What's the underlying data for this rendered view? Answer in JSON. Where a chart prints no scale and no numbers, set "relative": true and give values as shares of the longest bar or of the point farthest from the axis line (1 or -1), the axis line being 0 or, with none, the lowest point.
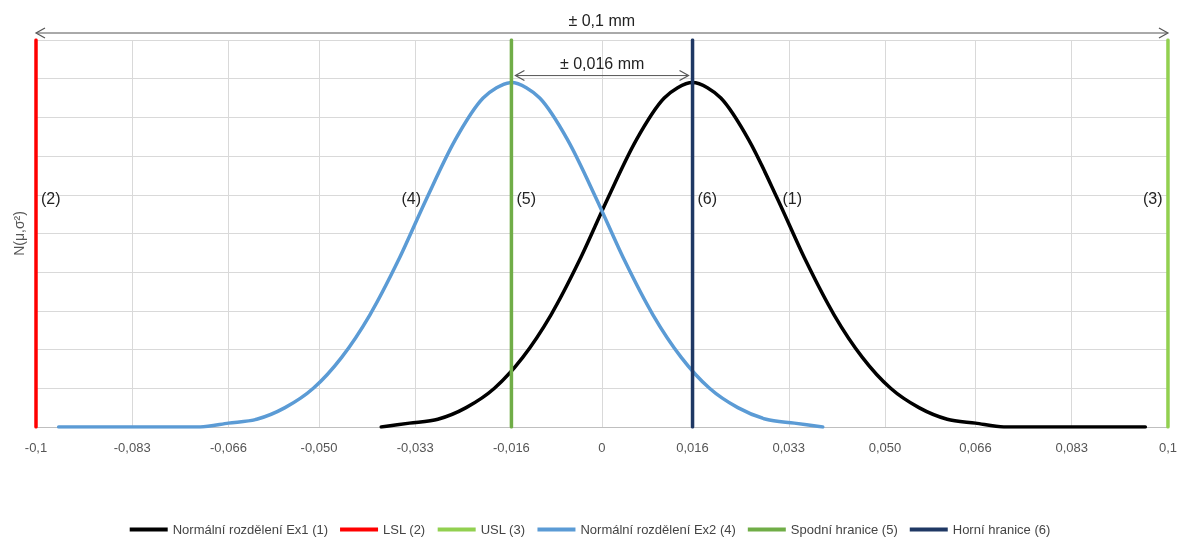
{
  "chart_data": {
    "type": "line",
    "relative": true,
    "ylabel": "N(μ,σ²)",
    "xlim": [
      -0.1,
      0.1
    ],
    "xticks": [
      {
        "value": -0.1,
        "label": "-0,1"
      },
      {
        "value": -0.083,
        "label": "-0,083"
      },
      {
        "value": -0.066,
        "label": "-0,066"
      },
      {
        "value": -0.05,
        "label": "-0,050"
      },
      {
        "value": -0.033,
        "label": "-0,033"
      },
      {
        "value": -0.016,
        "label": "-0,016"
      },
      0,
      {
        "value": 0.016,
        "label": "0,016"
      },
      {
        "value": 0.033,
        "label": "0,033"
      },
      {
        "value": 0.05,
        "label": "0,050"
      },
      {
        "value": 0.066,
        "label": "0,066"
      },
      {
        "value": 0.083,
        "label": "0,083"
      },
      {
        "value": 0.1,
        "label": "0,1"
      }
    ],
    "series": [
      {
        "name": "Normální rozdělení Ex1 (1)",
        "color": "#000000",
        "x": [
          -0.039,
          -0.034,
          -0.029,
          -0.024,
          -0.019,
          -0.014,
          -0.009,
          -0.004,
          0.001,
          0.006,
          0.011,
          0.016,
          0.021,
          0.026,
          0.031,
          0.036,
          0.041,
          0.046,
          0.051,
          0.056,
          0.061,
          0.066,
          0.071,
          0.096
        ],
        "values": [
          0,
          0.01,
          0.02,
          0.05,
          0.1,
          0.18,
          0.29,
          0.43,
          0.59,
          0.74,
          0.85,
          0.89,
          0.85,
          0.74,
          0.59,
          0.43,
          0.29,
          0.18,
          0.1,
          0.05,
          0.02,
          0.01,
          0,
          0
        ]
      },
      {
        "name": "LSL (2)",
        "color": "#ff0000",
        "x": [
          -0.1,
          -0.1
        ],
        "values": [
          0,
          1
        ]
      },
      {
        "name": "USL (3)",
        "color": "#92d050",
        "x": [
          0.1,
          0.1
        ],
        "values": [
          0,
          1
        ]
      },
      {
        "name": "Normální rozdělení Ex2 (4)",
        "color": "#5b9bd5",
        "x": [
          -0.096,
          -0.071,
          -0.066,
          -0.061,
          -0.056,
          -0.051,
          -0.046,
          -0.041,
          -0.036,
          -0.031,
          -0.026,
          -0.021,
          -0.016,
          -0.011,
          -0.006,
          -0.001,
          0.004,
          0.009,
          0.014,
          0.019,
          0.024,
          0.029,
          0.034,
          0.039
        ],
        "values": [
          0,
          0,
          0.01,
          0.02,
          0.05,
          0.1,
          0.18,
          0.29,
          0.43,
          0.59,
          0.74,
          0.85,
          0.89,
          0.85,
          0.74,
          0.59,
          0.43,
          0.29,
          0.18,
          0.1,
          0.05,
          0.02,
          0.01,
          0
        ]
      },
      {
        "name": "Spodní hranice (5)",
        "color": "#70ad47",
        "x": [
          -0.016,
          -0.016
        ],
        "values": [
          0,
          1
        ]
      },
      {
        "name": "Horní hranice (6)",
        "color": "#1f3864",
        "x": [
          0.016,
          0.016
        ],
        "values": [
          0,
          1
        ]
      }
    ],
    "annotations": [
      "± 0,1 mm",
      "± 0,016 mm",
      {
        "text": "(2)",
        "x": -0.1,
        "y": 0.59
      },
      {
        "text": "(4)",
        "x": -0.031,
        "y": 0.59
      },
      {
        "text": "(5)",
        "x": -0.016,
        "y": 0.59
      },
      {
        "text": "(6)",
        "x": 0.016,
        "y": 0.59
      },
      {
        "text": "(1)",
        "x": 0.031,
        "y": 0.59
      },
      {
        "text": "(3)",
        "x": 0.1,
        "y": 0.59
      }
    ],
    "grid": true,
    "legend": "bottom",
    "marker": "none",
    "line_style": "solid"
  }
}
